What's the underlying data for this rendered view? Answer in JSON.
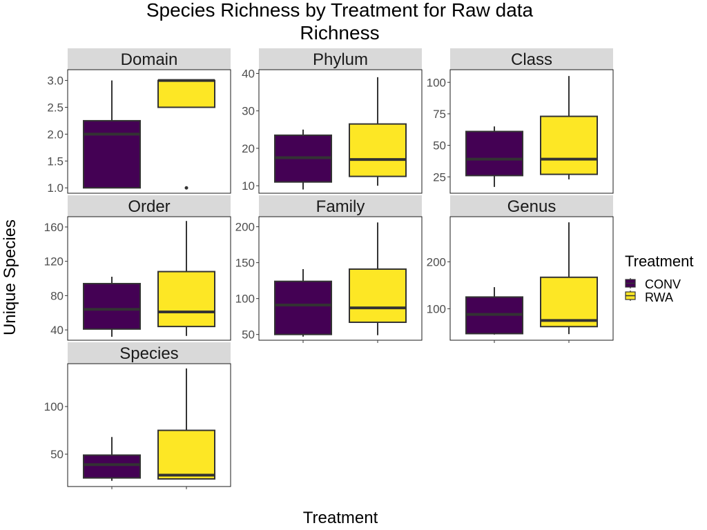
{
  "chart_data": {
    "type": "boxplot",
    "title_line1": "Species Richness by Treatment for Raw data",
    "title_line2": "Richness",
    "xlabel": "Treatment",
    "ylabel": "Unique Species",
    "legend": {
      "title": "Treatment",
      "placement": "right",
      "entries": [
        {
          "label": "CONV",
          "color": "#440154"
        },
        {
          "label": "RWA",
          "color": "#FDE725"
        }
      ]
    },
    "categories": [
      "CONV",
      "RWA"
    ],
    "panels": [
      {
        "name": "Domain",
        "ylim": [
          0.9,
          3.2
        ],
        "ticks": [
          1.0,
          1.5,
          2.0,
          2.5,
          3.0
        ],
        "tick_labels": [
          "1.0",
          "1.5",
          "2.0",
          "2.5",
          "3.0"
        ],
        "boxes": [
          {
            "treatment": "CONV",
            "min": 1.0,
            "q1": 1.0,
            "median": 2.0,
            "q3": 2.25,
            "max": 3.0,
            "outliers": []
          },
          {
            "treatment": "RWA",
            "min": 2.5,
            "q1": 2.5,
            "median": 3.0,
            "q3": 3.0,
            "max": 3.0,
            "outliers": [
              1.0
            ]
          }
        ]
      },
      {
        "name": "Phylum",
        "ylim": [
          8,
          41
        ],
        "ticks": [
          10,
          20,
          30,
          40
        ],
        "tick_labels": [
          "10",
          "20",
          "30",
          "40"
        ],
        "boxes": [
          {
            "treatment": "CONV",
            "min": 9,
            "q1": 11,
            "median": 17.5,
            "q3": 23.5,
            "max": 25,
            "outliers": []
          },
          {
            "treatment": "RWA",
            "min": 10,
            "q1": 12.5,
            "median": 17,
            "q3": 26.5,
            "max": 39,
            "outliers": []
          }
        ]
      },
      {
        "name": "Class",
        "ylim": [
          12,
          110
        ],
        "ticks": [
          25,
          50,
          75,
          100
        ],
        "tick_labels": [
          "25",
          "50",
          "75",
          "100"
        ],
        "boxes": [
          {
            "treatment": "CONV",
            "min": 17,
            "q1": 26,
            "median": 39,
            "q3": 61,
            "max": 65,
            "outliers": []
          },
          {
            "treatment": "RWA",
            "min": 23,
            "q1": 27,
            "median": 39,
            "q3": 73,
            "max": 105,
            "outliers": []
          }
        ]
      },
      {
        "name": "Order",
        "ylim": [
          28,
          172
        ],
        "ticks": [
          40,
          80,
          120,
          160
        ],
        "tick_labels": [
          "40",
          "80",
          "120",
          "160"
        ],
        "boxes": [
          {
            "treatment": "CONV",
            "min": 32,
            "q1": 41,
            "median": 64,
            "q3": 94,
            "max": 102,
            "outliers": []
          },
          {
            "treatment": "RWA",
            "min": 33,
            "q1": 44,
            "median": 61,
            "q3": 108,
            "max": 167,
            "outliers": []
          }
        ]
      },
      {
        "name": "Family",
        "ylim": [
          42,
          214
        ],
        "ticks": [
          50,
          100,
          150,
          200
        ],
        "tick_labels": [
          "50",
          "100",
          "150",
          "200"
        ],
        "boxes": [
          {
            "treatment": "CONV",
            "min": 47,
            "q1": 50,
            "median": 91,
            "q3": 124,
            "max": 141,
            "outliers": []
          },
          {
            "treatment": "RWA",
            "min": 49,
            "q1": 67,
            "median": 87,
            "q3": 141,
            "max": 206,
            "outliers": []
          }
        ]
      },
      {
        "name": "Genus",
        "ylim": [
          33,
          296
        ],
        "ticks": [
          100,
          200
        ],
        "tick_labels": [
          "100",
          "200"
        ],
        "boxes": [
          {
            "treatment": "CONV",
            "min": 45,
            "q1": 47,
            "median": 88,
            "q3": 125,
            "max": 146,
            "outliers": []
          },
          {
            "treatment": "RWA",
            "min": 46,
            "q1": 62,
            "median": 75,
            "q3": 167,
            "max": 284,
            "outliers": []
          }
        ]
      },
      {
        "name": "Species",
        "ylim": [
          16,
          145
        ],
        "ticks": [
          50,
          100
        ],
        "tick_labels": [
          "50",
          "100"
        ],
        "boxes": [
          {
            "treatment": "CONV",
            "min": 22,
            "q1": 25,
            "median": 39,
            "q3": 49,
            "max": 68,
            "outliers": []
          },
          {
            "treatment": "RWA",
            "min": 24,
            "q1": 24,
            "median": 28,
            "q3": 75,
            "max": 140,
            "outliers": []
          }
        ]
      }
    ]
  }
}
